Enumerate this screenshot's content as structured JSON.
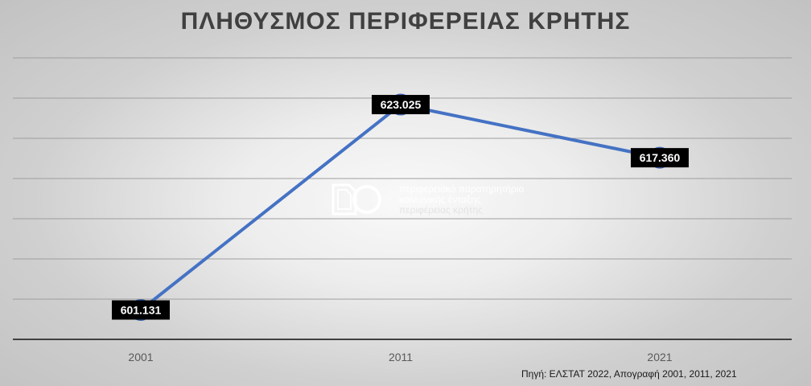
{
  "chart_data": {
    "type": "line",
    "title": "ΠΛΗΘΥΣΜΟΣ ΠΕΡΙΦΕΡΕΙΑΣ ΚΡΗΤΗΣ",
    "categories": [
      "2001",
      "2011",
      "2021"
    ],
    "values": [
      601131,
      623025,
      617360
    ],
    "data_labels": [
      "601.131",
      "623.025",
      "617.360"
    ],
    "xlabel": "",
    "ylabel": "",
    "ylim": [
      598000,
      628000
    ],
    "grid": true,
    "legend": "none",
    "line_color": "#4472c4"
  },
  "watermark": {
    "line1": "περιφερειακό παρατηρητήριο",
    "line2": "κοινωνικής ένταξης",
    "line3": "περιφέρειας κρήτης"
  },
  "source": "Πηγή: ΕΛΣΤΑΤ 2022, Απογραφή 2001, 2011, 2021"
}
